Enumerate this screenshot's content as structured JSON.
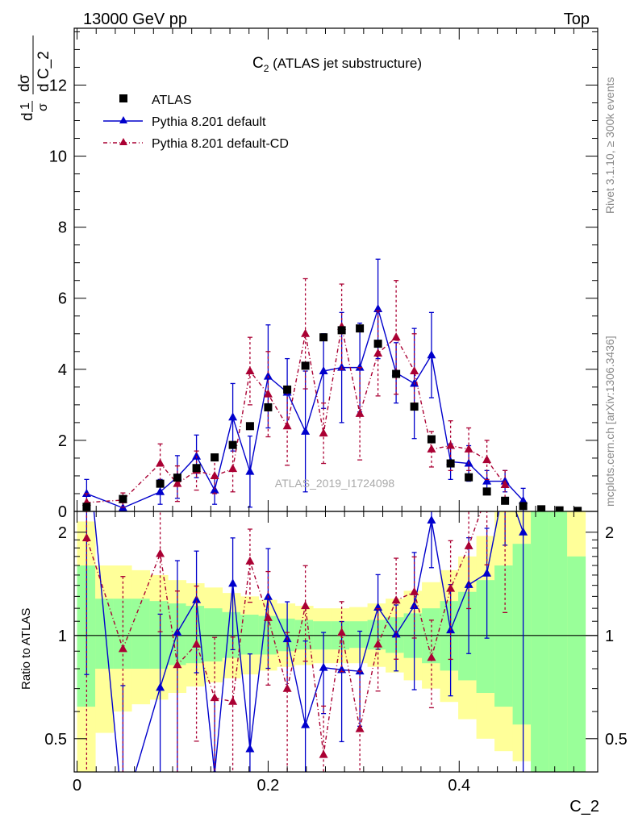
{
  "header": {
    "left": "13000 GeV pp",
    "right": "Top"
  },
  "side_labels": {
    "rivet": "Rivet 3.1.10, ≥ 300k events",
    "mcplots": "mcplots.cern.ch [arXiv:1306.3436]"
  },
  "chart_data": [
    {
      "type": "scatter",
      "title": "C_2 (ATLAS jet substructure)",
      "watermark": "ATLAS_2019_I1724098",
      "ylabel": "d1/σ dσ/d C_2",
      "xlim": [
        -0.003,
        0.545
      ],
      "ylim": [
        0,
        13.6
      ],
      "yticks": [
        0,
        2,
        4,
        6,
        8,
        10,
        12
      ],
      "legend_position": "top-left",
      "colors": {
        "data": "#000000",
        "default": "#0000cc",
        "cd": "#aa0033"
      },
      "x": [
        0.01,
        0.048,
        0.087,
        0.105,
        0.125,
        0.144,
        0.163,
        0.181,
        0.2,
        0.22,
        0.239,
        0.258,
        0.277,
        0.296,
        0.315,
        0.334,
        0.353,
        0.371,
        0.391,
        0.41,
        0.429,
        0.448,
        0.467,
        0.486,
        0.505,
        0.524
      ],
      "series": [
        {
          "name": "ATLAS",
          "style": "square",
          "values": [
            0.13,
            0.35,
            0.78,
            0.95,
            1.22,
            1.52,
            1.87,
            2.4,
            2.93,
            3.43,
            4.1,
            4.9,
            5.1,
            5.15,
            4.72,
            3.87,
            2.95,
            2.03,
            1.35,
            0.96,
            0.56,
            0.3,
            0.15,
            0.06,
            0.03,
            0.015
          ]
        },
        {
          "name": "Pythia 8.201 default",
          "style": "line-triangle",
          "values": [
            0.5,
            0.1,
            0.55,
            0.97,
            1.55,
            0.6,
            2.65,
            1.12,
            3.8,
            3.35,
            2.25,
            3.95,
            4.05,
            4.05,
            5.7,
            3.9,
            3.6,
            4.4,
            1.4,
            1.35,
            0.85,
            0.85,
            0.3
          ],
          "errors": [
            0.4,
            0.15,
            0.35,
            0.6,
            0.6,
            0.4,
            0.95,
            1.0,
            1.45,
            0.95,
            1.7,
            1.05,
            1.55,
            1.25,
            1.4,
            0.85,
            1.55,
            1.2,
            0.5,
            0.5,
            0.3,
            0.3,
            0.35
          ]
        },
        {
          "name": "Pythia 8.201 default-CD",
          "style": "dashdot-triangle",
          "values": [
            0.25,
            0.32,
            1.35,
            0.78,
            1.15,
            1.0,
            1.2,
            3.95,
            3.3,
            2.4,
            5.0,
            2.2,
            5.2,
            2.75,
            4.45,
            4.9,
            3.95,
            1.75,
            1.85,
            1.75,
            1.45,
            0.75
          ],
          "errors": [
            0.25,
            0.2,
            0.55,
            0.5,
            0.55,
            0.5,
            0.65,
            0.95,
            1.2,
            1.1,
            1.55,
            0.85,
            1.2,
            1.3,
            1.2,
            1.6,
            1.05,
            0.5,
            0.7,
            0.6,
            0.55,
            0.4
          ]
        }
      ]
    },
    {
      "type": "scatter",
      "ylabel": "Ratio to ATLAS",
      "xlabel": "C_2",
      "xlim": [
        -0.003,
        0.545
      ],
      "ylim": [
        0.4,
        2.3
      ],
      "yscale": "log",
      "yticks": [
        0.5,
        1,
        2
      ],
      "xticks": [
        0,
        0.2,
        0.4
      ],
      "reference_line": 1,
      "bands": {
        "edges": [
          0.0,
          0.019,
          0.038,
          0.057,
          0.076,
          0.095,
          0.114,
          0.133,
          0.152,
          0.171,
          0.19,
          0.209,
          0.228,
          0.247,
          0.266,
          0.285,
          0.304,
          0.323,
          0.342,
          0.361,
          0.38,
          0.399,
          0.418,
          0.437,
          0.456,
          0.475,
          0.494,
          0.513,
          0.532
        ],
        "inner_color": "#99ff99",
        "outer_color": "#ffff99",
        "inner_lo": [
          0.62,
          0.8,
          0.8,
          0.8,
          0.8,
          0.82,
          0.83,
          0.84,
          0.86,
          0.88,
          0.88,
          0.9,
          0.91,
          0.91,
          0.91,
          0.92,
          0.91,
          0.89,
          0.86,
          0.83,
          0.79,
          0.74,
          0.68,
          0.62,
          0.55,
          0.4,
          0.4,
          0.4
        ],
        "inner_hi": [
          1.6,
          1.28,
          1.28,
          1.28,
          1.26,
          1.24,
          1.22,
          1.2,
          1.17,
          1.15,
          1.14,
          1.12,
          1.11,
          1.1,
          1.1,
          1.1,
          1.11,
          1.13,
          1.16,
          1.2,
          1.26,
          1.34,
          1.45,
          1.6,
          1.85,
          2.3,
          2.3,
          1.7
        ],
        "outer_lo": [
          0.4,
          0.52,
          0.6,
          0.63,
          0.65,
          0.68,
          0.71,
          0.73,
          0.75,
          0.77,
          0.79,
          0.81,
          0.82,
          0.83,
          0.83,
          0.83,
          0.81,
          0.78,
          0.74,
          0.7,
          0.64,
          0.57,
          0.5,
          0.46,
          0.43,
          0.4,
          0.4,
          0.4
        ],
        "outer_hi": [
          2.15,
          1.6,
          1.6,
          1.55,
          1.5,
          1.45,
          1.42,
          1.38,
          1.33,
          1.3,
          1.27,
          1.24,
          1.22,
          1.2,
          1.2,
          1.21,
          1.24,
          1.28,
          1.35,
          1.43,
          1.55,
          1.7,
          1.95,
          2.3,
          2.3,
          2.3,
          2.3,
          2.3
        ]
      }
    }
  ]
}
